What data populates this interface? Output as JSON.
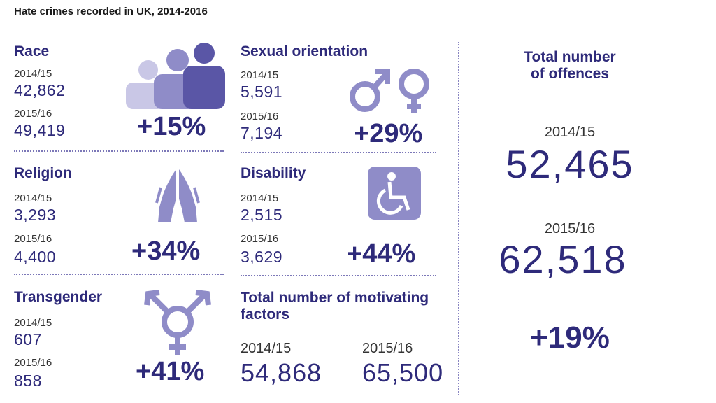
{
  "title": "Hate crimes recorded in UK, 2014-2016",
  "colors": {
    "dark": "#2e2a7a",
    "mid": "#6c68b2",
    "light": "#b3b0d9",
    "icon": "#8f8cc8"
  },
  "chart_data": {
    "type": "table",
    "title": "Hate crimes recorded in UK, 2014-2016",
    "periods": [
      "2014/15",
      "2015/16"
    ],
    "categories": [
      {
        "name": "Race",
        "values": [
          "42,862",
          "49,419"
        ],
        "change": "+15%",
        "icon": "people-icon"
      },
      {
        "name": "Sexual orientation",
        "values": [
          "5,591",
          "7,194"
        ],
        "change": "+29%",
        "icon": "gender-symbols-icon"
      },
      {
        "name": "Religion",
        "values": [
          "3,293",
          "4,400"
        ],
        "change": "+34%",
        "icon": "praying-hands-icon"
      },
      {
        "name": "Disability",
        "values": [
          "2,515",
          "3,629"
        ],
        "change": "+44%",
        "icon": "wheelchair-icon"
      },
      {
        "name": "Transgender",
        "values": [
          "607",
          "858"
        ],
        "change": "+41%",
        "icon": "transgender-icon"
      }
    ],
    "motivating_factors": {
      "label": "Total number of motivating factors",
      "values": [
        "54,868",
        "65,500"
      ]
    },
    "total_offences": {
      "label_line1": "Total number",
      "label_line2": "of offences",
      "values": [
        "52,465",
        "62,518"
      ],
      "change": "+19%"
    }
  }
}
